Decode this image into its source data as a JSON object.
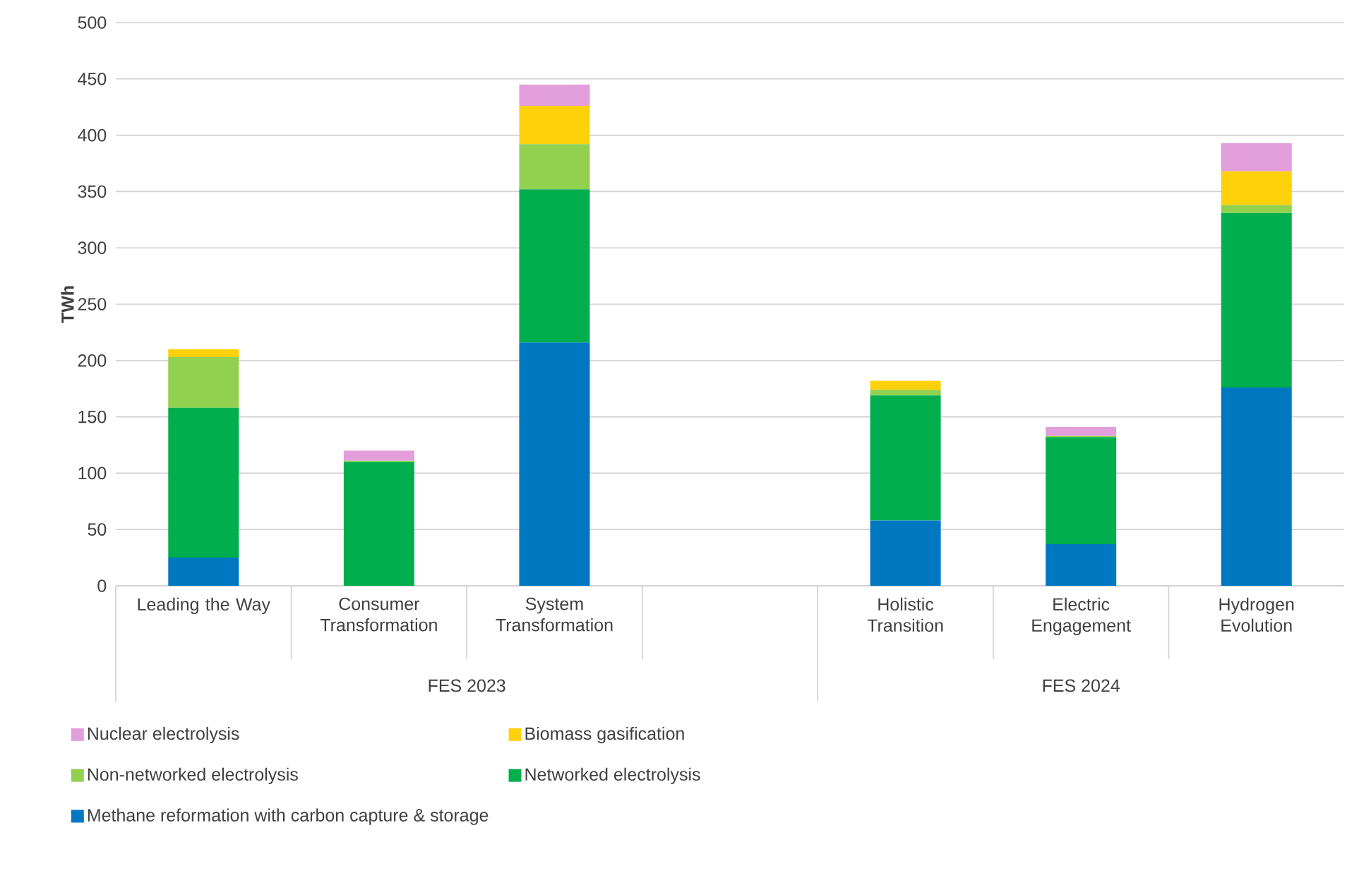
{
  "chart_data": {
    "type": "bar",
    "stacked": true,
    "ylabel": "TWh",
    "categories": [
      "Leading the Way",
      "Consumer Transformation",
      "System Transformation",
      null,
      "Holistic Transition",
      "Electric Engagement",
      "Hydrogen Evolution"
    ],
    "annotations": [
      "FES 2023",
      "FES 2024"
    ],
    "series": [
      {
        "name": "Methane reformation with carbon capture & storage",
        "color": "#0078c1",
        "values": [
          25,
          0,
          216,
          null,
          58,
          37,
          176
        ]
      },
      {
        "name": "Networked electrolysis",
        "color": "#00ae4e",
        "values": [
          133,
          110,
          136,
          null,
          111,
          95,
          155
        ]
      },
      {
        "name": "Non-networked electrolysis",
        "color": "#92d050",
        "values": [
          45,
          1,
          40,
          null,
          5,
          1,
          7
        ]
      },
      {
        "name": "Biomass gasification",
        "color": "#ffd10a",
        "values": [
          7,
          0,
          34,
          null,
          8,
          0,
          30
        ]
      },
      {
        "name": "Nuclear electrolysis",
        "color": "#e29fdc",
        "values": [
          0,
          9,
          19,
          null,
          0,
          8,
          25
        ]
      }
    ],
    "ylim": [
      0,
      500
    ],
    "yticks": [
      0,
      50,
      100,
      150,
      200,
      250,
      300,
      350,
      400,
      450,
      500
    ],
    "grid": "y",
    "legend": "bottom"
  }
}
